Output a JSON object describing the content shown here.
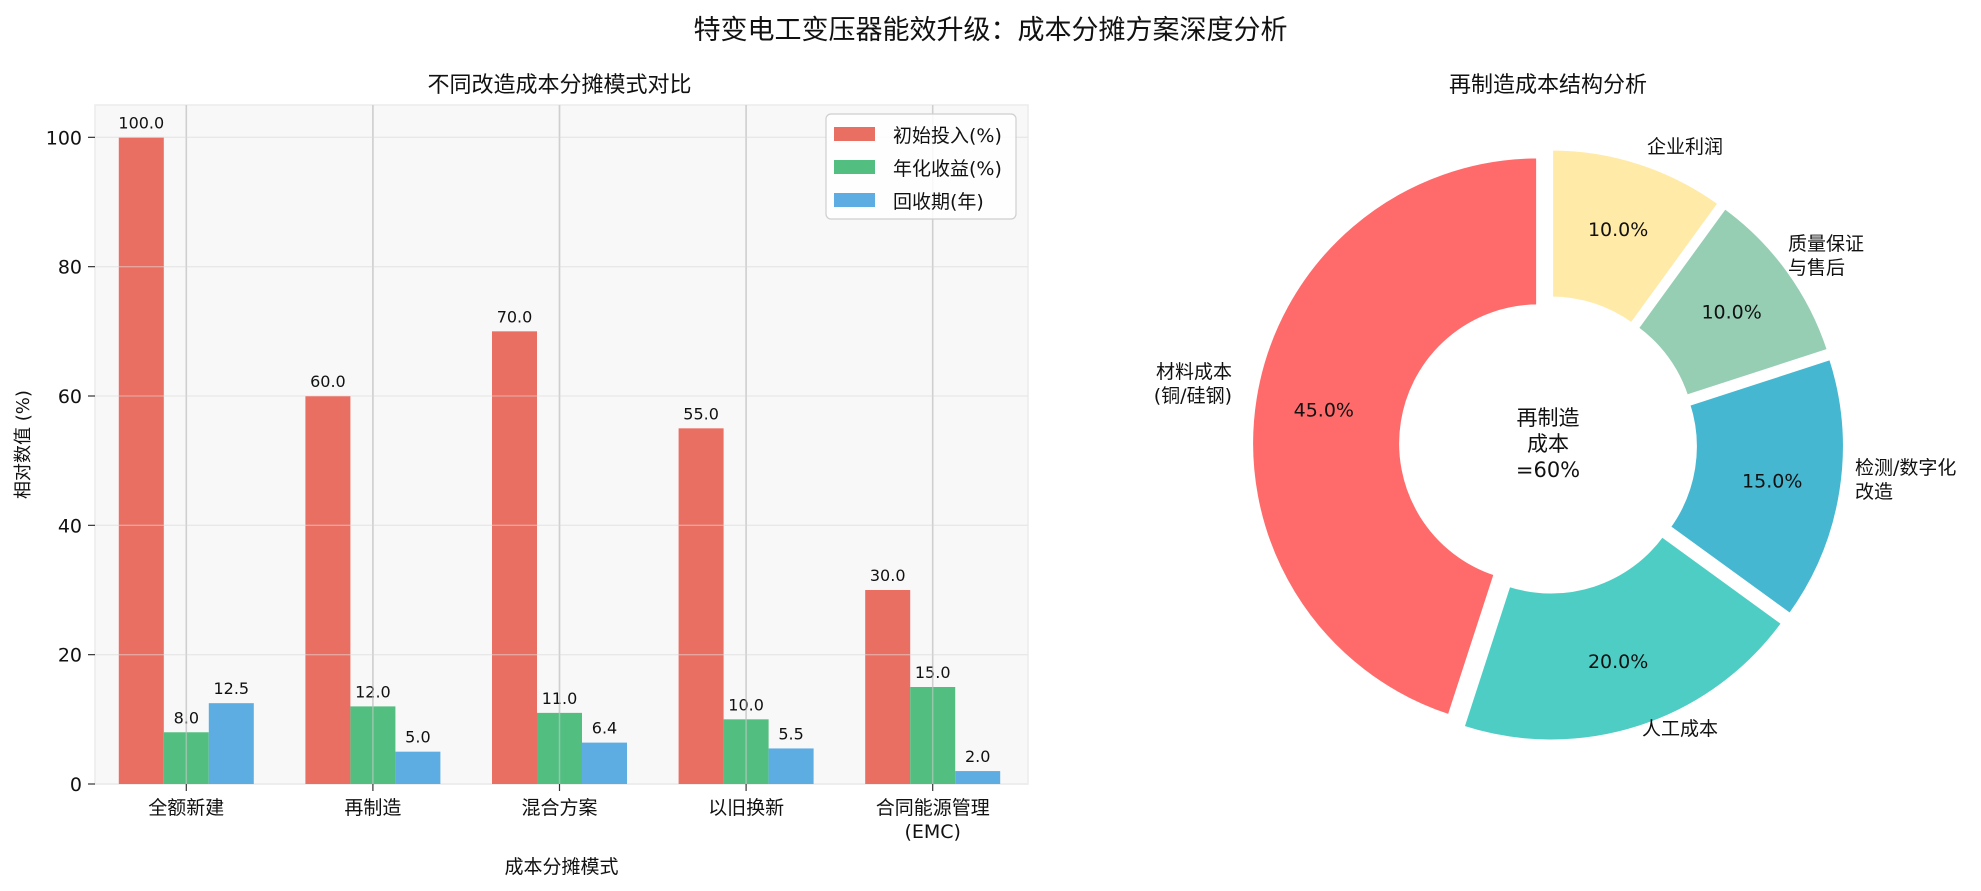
{
  "suptitle": "特变电工变压器能效升级：成本分摊方案深度分析",
  "chart_data": [
    {
      "type": "bar",
      "title": "不同改造成本分摊模式对比",
      "xlabel": "成本分摊模式",
      "ylabel": "相对数值 (%)",
      "ylim": [
        0,
        105
      ],
      "yticks": [
        0,
        20,
        40,
        60,
        80,
        100
      ],
      "grid": true,
      "legend_position": "upper right",
      "categories": [
        "全额新建",
        "再制造",
        "混合方案",
        "以旧换新",
        "合同能源管理\n(EMC)"
      ],
      "series": [
        {
          "name": "初始投入(%)",
          "color": "#e96f63",
          "values": [
            100.0,
            60.0,
            70.0,
            55.0,
            30.0
          ]
        },
        {
          "name": "年化收益(%)",
          "color": "#52be80",
          "values": [
            8.0,
            12.0,
            11.0,
            10.0,
            15.0
          ]
        },
        {
          "name": "回收期(年)",
          "color": "#5dade2",
          "values": [
            12.5,
            5.0,
            6.4,
            5.5,
            2.0
          ]
        }
      ]
    },
    {
      "type": "pie",
      "title": "再制造成本结构分析",
      "donut": true,
      "center_text": "再制造\n成本\n=60%",
      "labels": [
        "材料成本\n(铜/硅钢)",
        "人工成本",
        "检测/数字化\n改造",
        "质量保证\n与售后",
        "企业利润"
      ],
      "values": [
        45.0,
        20.0,
        15.0,
        10.0,
        10.0
      ],
      "autopct": [
        "45.0%",
        "20.0%",
        "15.0%",
        "10.0%",
        "10.0%"
      ],
      "colors": [
        "#ff6b6b",
        "#4ecdc4",
        "#45b7d1",
        "#96ceb4",
        "#ffeaa7"
      ],
      "startangle": 90
    }
  ]
}
